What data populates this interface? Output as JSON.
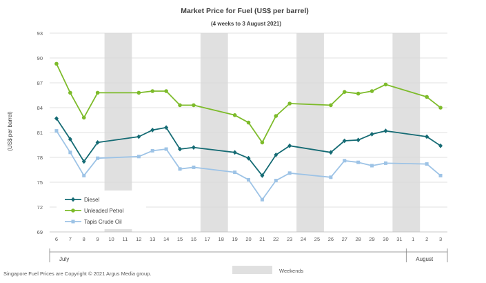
{
  "chart_data": {
    "type": "line",
    "title": "Market Price for Fuel  (US$  per barrel)",
    "subtitle": "(4 weeks to 3 August 2021)",
    "ylabel": "(US$ per barrel)",
    "xlabel": "",
    "ylim": [
      69,
      93
    ],
    "yticks": [
      "93",
      "90",
      "87",
      "84",
      "81",
      "78",
      "75",
      "72",
      "69"
    ],
    "categories": [
      "6",
      "7",
      "8",
      "9",
      "10",
      "11",
      "12",
      "13",
      "14",
      "15",
      "16",
      "17",
      "18",
      "19",
      "20",
      "21",
      "22",
      "23",
      "24",
      "25",
      "26",
      "27",
      "28",
      "29",
      "30",
      "31",
      "1",
      "2",
      "3"
    ],
    "months": [
      {
        "label": "July",
        "start": "6",
        "end": "31"
      },
      {
        "label": "August",
        "start": "1",
        "end": "3"
      }
    ],
    "weekend_bands": [
      [
        "10",
        "11"
      ],
      [
        "17",
        "18"
      ],
      [
        "24",
        "25"
      ],
      [
        "31",
        "1"
      ]
    ],
    "series": [
      {
        "name": "Diesel",
        "color": "#156b74",
        "marker": "diamond",
        "values": [
          82.7,
          80.2,
          77.5,
          79.8,
          null,
          null,
          80.5,
          81.3,
          81.6,
          79.0,
          79.2,
          null,
          null,
          78.6,
          77.9,
          75.8,
          78.3,
          79.4,
          null,
          null,
          78.6,
          80.0,
          80.1,
          80.8,
          81.2,
          null,
          null,
          80.5,
          79.4
        ]
      },
      {
        "name": "Unleaded Petrol",
        "color": "#7dbb2a",
        "marker": "circle",
        "values": [
          89.3,
          85.8,
          82.8,
          85.8,
          null,
          null,
          85.8,
          86.0,
          86.0,
          84.3,
          84.3,
          null,
          null,
          83.1,
          82.2,
          79.8,
          83.0,
          84.5,
          null,
          null,
          84.3,
          85.9,
          85.7,
          86.0,
          86.8,
          null,
          null,
          85.3,
          84.0
        ]
      },
      {
        "name": "Tapis Crude Oil",
        "color": "#9dc3e6",
        "marker": "square",
        "values": [
          81.2,
          78.6,
          75.8,
          77.9,
          null,
          null,
          78.1,
          78.8,
          79.0,
          76.6,
          76.8,
          null,
          null,
          76.2,
          75.3,
          72.9,
          75.2,
          76.1,
          null,
          null,
          75.6,
          77.6,
          77.4,
          77.0,
          77.3,
          null,
          null,
          77.2,
          75.8
        ]
      }
    ],
    "band_legend": "Weekends",
    "footer": "Singapore  Fuel Prices are Copyright  © 2021  Argus Media group."
  }
}
